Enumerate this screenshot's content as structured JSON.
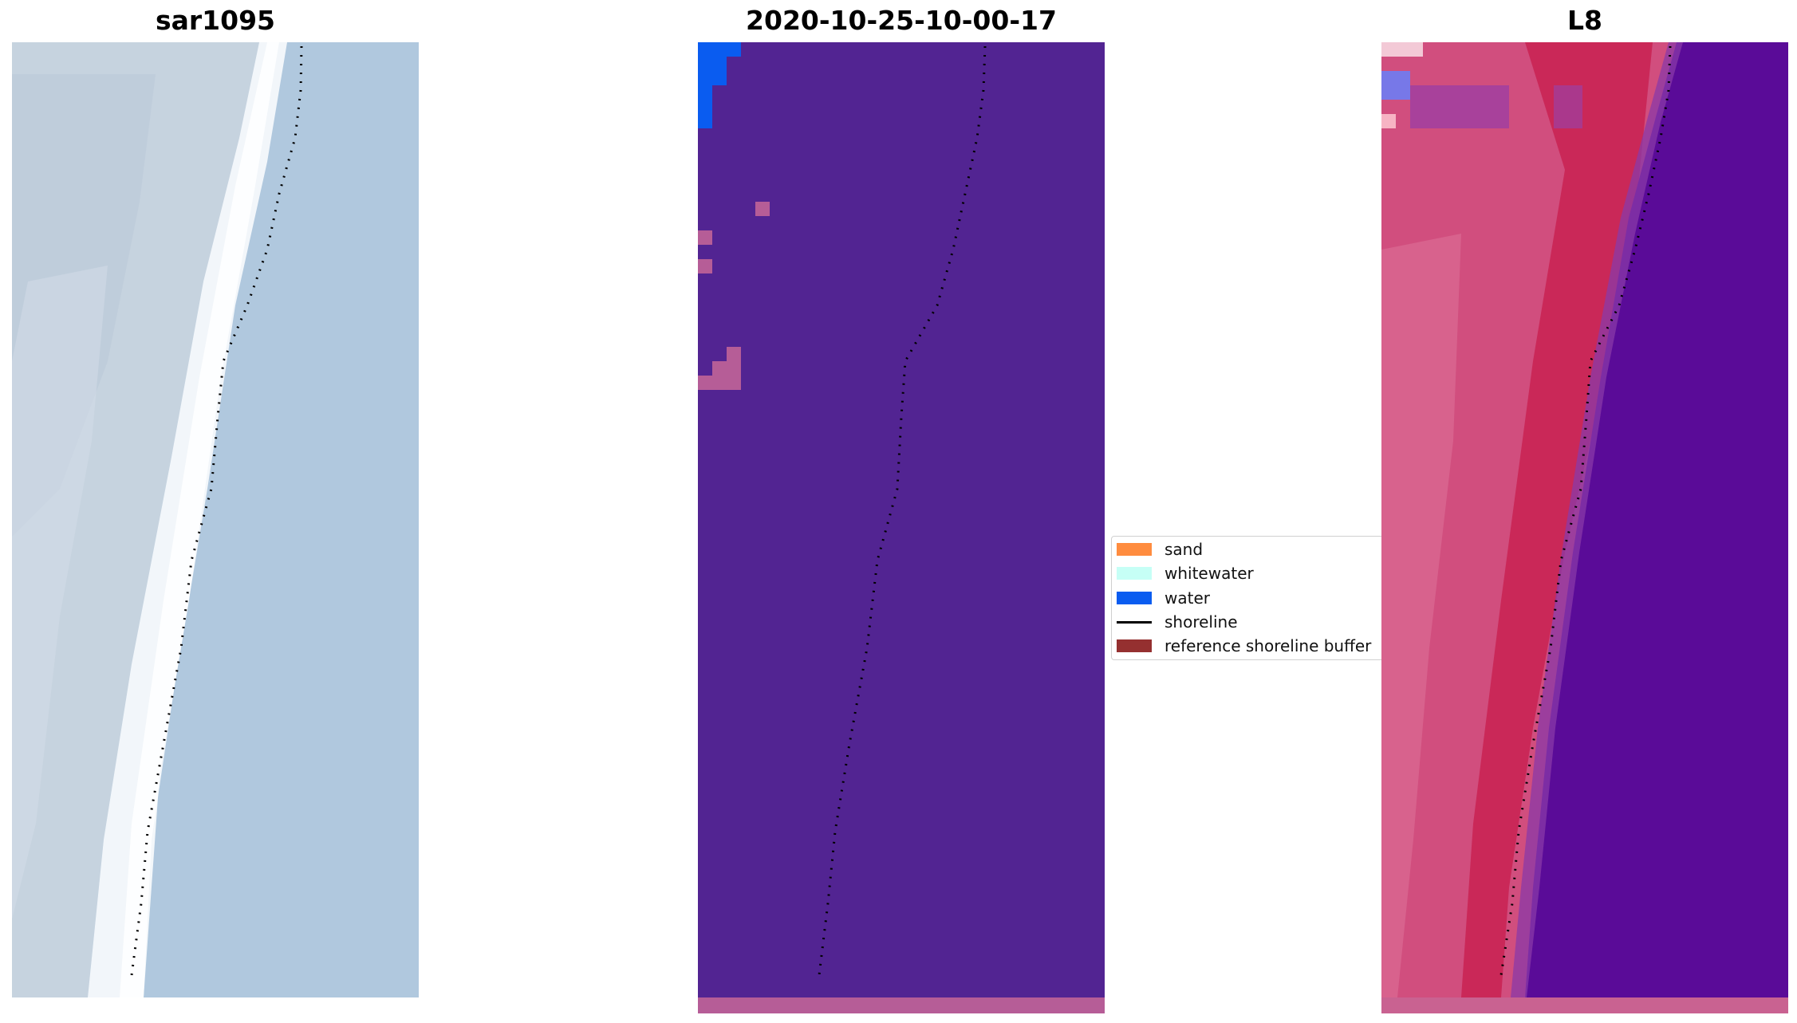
{
  "panels": {
    "left": {
      "title": "sar1095"
    },
    "middle": {
      "title": "2020-10-25-10-00-17"
    },
    "right": {
      "title": "L8"
    }
  },
  "legend": {
    "items": [
      {
        "label": "sand",
        "color": "#ff8c3f"
      },
      {
        "label": "whitewater",
        "color": "#c6fff6"
      },
      {
        "label": "water",
        "color": "#0a5cf0"
      },
      {
        "label": "shoreline",
        "color": "#000000"
      },
      {
        "label": "reference shoreline buffer",
        "color": "#953030"
      }
    ]
  },
  "colors": {
    "sar_land": "#c6d3df",
    "sar_water": "#b0c8de",
    "sar_surf": "#f2f6fa",
    "classified_background": "#522492",
    "classified_water": "#0a5cf0",
    "classified_buffer": "#b65d97",
    "l8_land": "#d14e7e",
    "l8_water": "#5a0b98"
  }
}
